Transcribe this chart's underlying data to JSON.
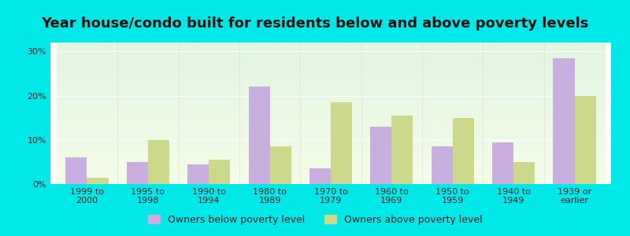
{
  "title": "Year house/condo built for residents below and above poverty levels",
  "categories": [
    "1999 to\n2000",
    "1995 to\n1998",
    "1990 to\n1994",
    "1980 to\n1989",
    "1970 to\n1979",
    "1960 to\n1969",
    "1950 to\n1959",
    "1940 to\n1949",
    "1939 or\nearlier"
  ],
  "below_poverty": [
    6.0,
    5.0,
    4.5,
    22.0,
    3.5,
    13.0,
    8.5,
    9.5,
    28.5
  ],
  "above_poverty": [
    1.5,
    10.0,
    5.5,
    8.5,
    18.5,
    15.5,
    15.0,
    5.0,
    20.0
  ],
  "below_color": "#c9aee0",
  "above_color": "#ccd98a",
  "background_outer": "#00e8e8",
  "ylim": [
    0,
    32
  ],
  "yticks": [
    0,
    10,
    20,
    30
  ],
  "ytick_labels": [
    "0%",
    "10%",
    "20%",
    "30%"
  ],
  "bar_width": 0.35,
  "legend_below_label": "Owners below poverty level",
  "legend_above_label": "Owners above poverty level",
  "title_fontsize": 13,
  "tick_fontsize": 8,
  "legend_fontsize": 9
}
